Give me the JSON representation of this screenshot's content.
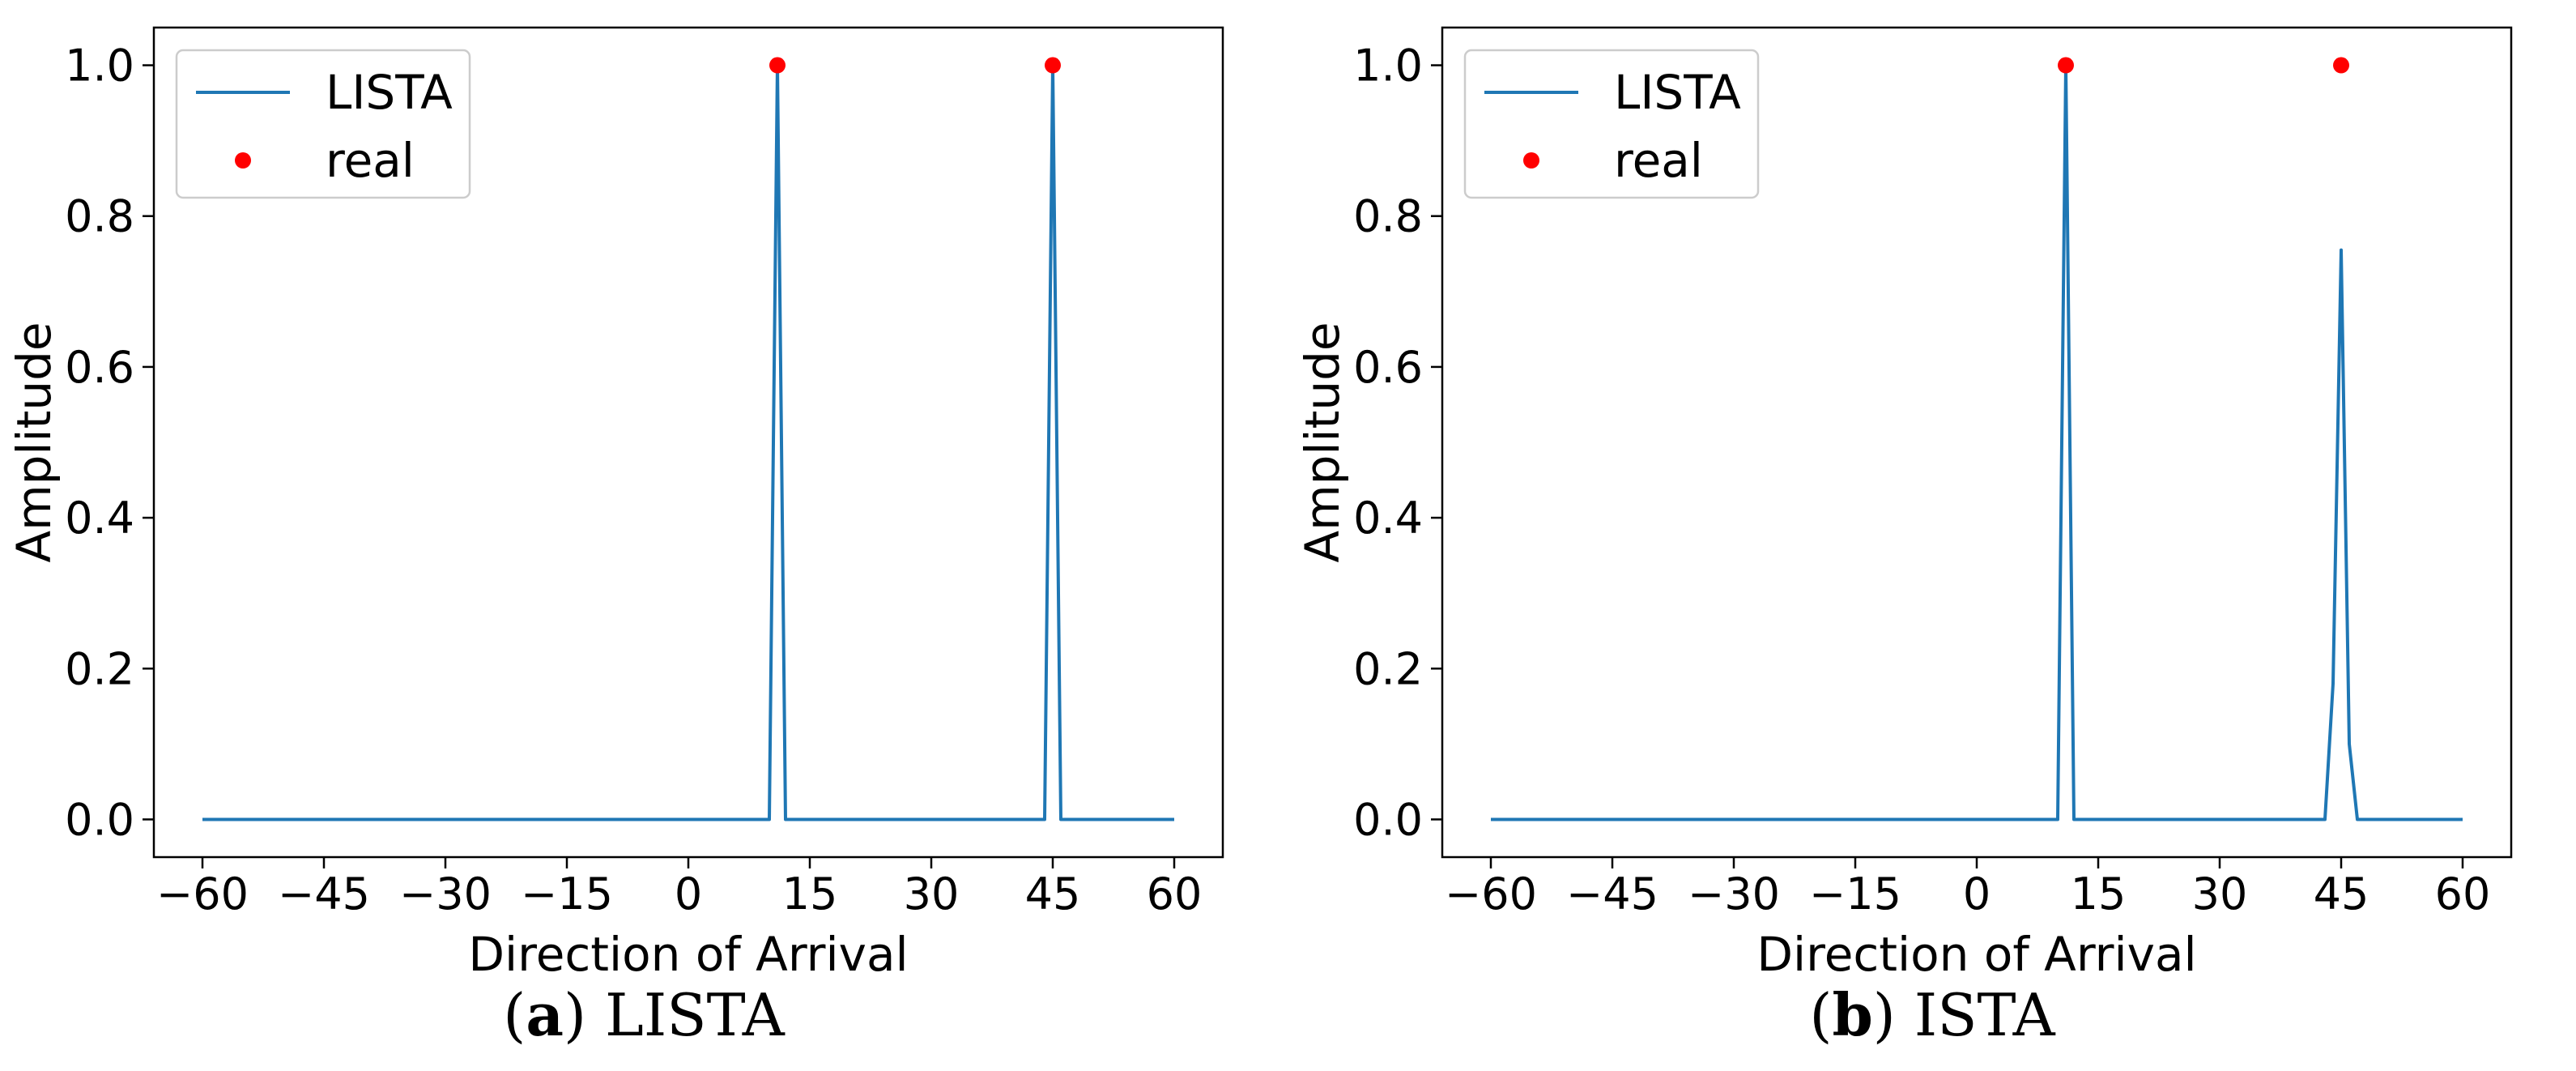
{
  "chart_data": [
    {
      "type": "line",
      "caption": {
        "letter": "a",
        "text": "LISTA"
      },
      "xlabel": "Direction of Arrival",
      "ylabel": "Amplitude",
      "xlim": [
        -66,
        66
      ],
      "ylim": [
        -0.05,
        1.05
      ],
      "xticks": [
        -60,
        -45,
        -30,
        -15,
        0,
        15,
        30,
        45,
        60
      ],
      "yticks": [
        0.0,
        0.2,
        0.4,
        0.6,
        0.8,
        1.0
      ],
      "grid": false,
      "legend": {
        "placement": "top-left",
        "entries": [
          "LISTA",
          "real"
        ]
      },
      "series": [
        {
          "name": "LISTA",
          "kind": "line",
          "color": "#1f77b4",
          "x": [
            -60,
            9,
            10,
            11,
            12,
            44,
            45,
            46,
            60
          ],
          "y": [
            0,
            0,
            0,
            1.0,
            0,
            0,
            1.0,
            0,
            0
          ]
        },
        {
          "name": "real",
          "kind": "scatter",
          "color": "#ff0000",
          "x": [
            11,
            45
          ],
          "y": [
            1.0,
            1.0
          ]
        }
      ]
    },
    {
      "type": "line",
      "caption": {
        "letter": "b",
        "text": "ISTA"
      },
      "xlabel": "Direction of Arrival",
      "ylabel": "Amplitude",
      "xlim": [
        -66,
        66
      ],
      "ylim": [
        -0.05,
        1.05
      ],
      "xticks": [
        -60,
        -45,
        -30,
        -15,
        0,
        15,
        30,
        45,
        60
      ],
      "yticks": [
        0.0,
        0.2,
        0.4,
        0.6,
        0.8,
        1.0
      ],
      "grid": false,
      "legend": {
        "placement": "top-left",
        "entries": [
          "LISTA",
          "real"
        ]
      },
      "series": [
        {
          "name": "LISTA",
          "kind": "line",
          "color": "#1f77b4",
          "x": [
            -60,
            9,
            10,
            11,
            12,
            43,
            44,
            45,
            46,
            47,
            60
          ],
          "y": [
            0,
            0,
            0,
            1.0,
            0,
            0,
            0.18,
            0.755,
            0.1,
            0,
            0
          ]
        },
        {
          "name": "real",
          "kind": "scatter",
          "color": "#ff0000",
          "x": [
            11,
            45
          ],
          "y": [
            1.0,
            1.0
          ]
        }
      ]
    }
  ]
}
